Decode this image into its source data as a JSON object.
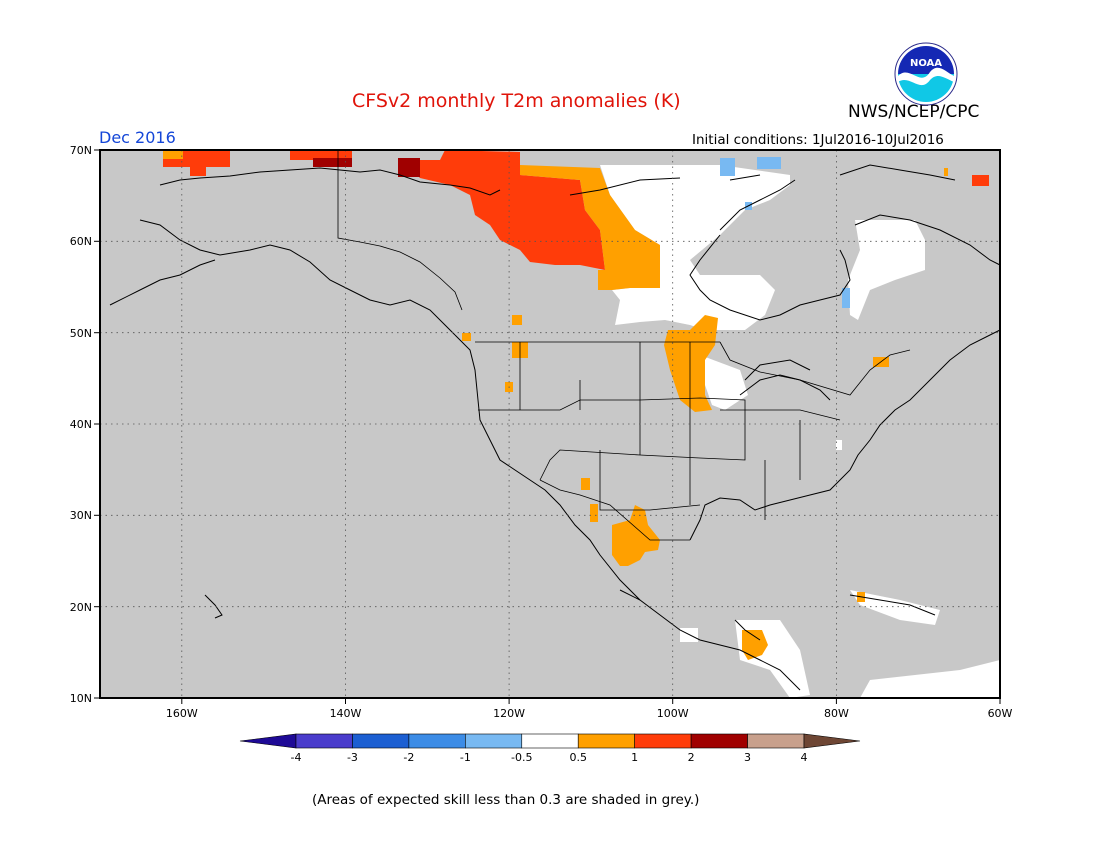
{
  "header": {
    "title": "CFSv2 monthly T2m anomalies (K)",
    "title_color": "#e0140a",
    "organization": "NWS/NCEP/CPC",
    "valid_month": "Dec 2016",
    "valid_color": "#1446d8",
    "initial_conditions": "Initial conditions: 1Jul2016-10Jul2016"
  },
  "logo": {
    "icon": "noaa-logo-icon",
    "text": "NOAA"
  },
  "map": {
    "background_color": "#c8c8c8",
    "lat_ticks": [
      "70N",
      "60N",
      "50N",
      "40N",
      "30N",
      "20N",
      "10N"
    ],
    "lon_ticks": [
      "160W",
      "140W",
      "120W",
      "100W",
      "80W",
      "60W"
    ],
    "lat_range": [
      10,
      70
    ],
    "lon_range": [
      -170,
      -60
    ],
    "grid": "dotted"
  },
  "colorbar": {
    "colors": [
      "#1e0a96",
      "#4a3ccc",
      "#1c5fd2",
      "#3c8ce6",
      "#78b9f2",
      "#ffffff",
      "#ffa000",
      "#ff3c0a",
      "#a00000",
      "#c8a08c",
      "#6e4634"
    ],
    "labels": [
      "-4",
      "-3",
      "-2",
      "-1",
      "-0.5",
      "0.5",
      "1",
      "2",
      "3",
      "4"
    ]
  },
  "footnote": "(Areas of expected skill less than 0.3 are shaded in grey.)"
}
